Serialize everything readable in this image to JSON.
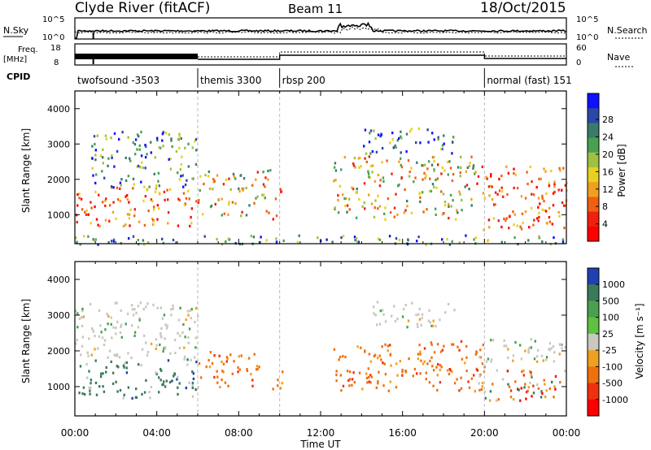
{
  "header": {
    "title": "Clyde River (fitACF)",
    "beam": "Beam 11",
    "date": "18/Oct/2015"
  },
  "summary_panel": {
    "nsky_label": "N.Sky",
    "nsky_ticks": [
      "10^5",
      "10^0"
    ],
    "nsearch_label": "N.Search",
    "nsearch_ticks": [
      "10^5",
      "10^0"
    ],
    "freq_label": "Freq.",
    "freq_unit": "[MHz]",
    "freq_ticks": [
      "18",
      "8"
    ],
    "nave_label": "Nave",
    "nave_ticks": [
      "60",
      "0"
    ],
    "cpid_label": "CPID",
    "cpid_segments": [
      {
        "name": "twofsound -3503",
        "start": 0,
        "end": 6
      },
      {
        "name": "themis 3300",
        "start": 6,
        "end": 10
      },
      {
        "name": "rbsp 200",
        "start": 10,
        "end": 20
      },
      {
        "name": "normal (fast) 151",
        "start": 20,
        "end": 24
      }
    ]
  },
  "chart_data": [
    {
      "type": "heatmap",
      "panel": "power",
      "ylabel": "Slant Range [km]",
      "ylim": [
        180,
        4500
      ],
      "y_ticks": [
        "1000",
        "2000",
        "3000",
        "4000"
      ],
      "xlim": [
        0,
        24
      ],
      "colorbar": {
        "label": "Power [dB]",
        "ticks": [
          "4",
          "8",
          "12",
          "16",
          "20",
          "24",
          "28"
        ],
        "colors": [
          "#1010ff",
          "#2a48a8",
          "#3a7a6a",
          "#4aa050",
          "#a0c040",
          "#e8d020",
          "#f0a020",
          "#f06010",
          "#f02010",
          "#ff0000"
        ]
      },
      "echo_regions": [
        {
          "t0": 0.0,
          "t1": 6.0,
          "r0": 700,
          "r1": 1800,
          "level": "strong"
        },
        {
          "t0": 0.8,
          "t1": 6.0,
          "r0": 1800,
          "r1": 3400,
          "level": "weak"
        },
        {
          "t0": 6.0,
          "t1": 9.5,
          "r0": 1000,
          "r1": 2300,
          "level": "medium"
        },
        {
          "t0": 9.6,
          "t1": 10.1,
          "r0": 900,
          "r1": 1800,
          "level": "strong"
        },
        {
          "t0": 12.6,
          "t1": 19.5,
          "r0": 900,
          "r1": 2700,
          "level": "medium"
        },
        {
          "t0": 14.0,
          "t1": 18.5,
          "r0": 2700,
          "r1": 3500,
          "level": "weak"
        },
        {
          "t0": 19.5,
          "t1": 24.0,
          "r0": 600,
          "r1": 2400,
          "level": "strong"
        },
        {
          "t0": 0.0,
          "t1": 24.0,
          "r0": 180,
          "r1": 450,
          "level": "weak"
        }
      ]
    },
    {
      "type": "heatmap",
      "panel": "velocity",
      "ylabel": "Slant Range [km]",
      "ylim": [
        180,
        4500
      ],
      "y_ticks": [
        "1000",
        "2000",
        "3000",
        "4000"
      ],
      "xlim": [
        0,
        24
      ],
      "xlabel": "Time UT",
      "x_ticks": [
        "00:00",
        "04:00",
        "08:00",
        "12:00",
        "16:00",
        "20:00",
        "00:00"
      ],
      "colorbar": {
        "label": "Velocity [m s⁻¹]",
        "ticks": [
          "1000",
          "500",
          "100",
          "25",
          "-25",
          "-100",
          "-500",
          "-1000"
        ],
        "colors": [
          "#2040b0",
          "#3a7a5a",
          "#4aa050",
          "#60c040",
          "#c8c8c0",
          "#f0a020",
          "#f07010",
          "#f03010",
          "#ff0000"
        ]
      },
      "echo_regions": [
        {
          "t0": 0.0,
          "t1": 6.0,
          "r0": 700,
          "r1": 1800,
          "level": "toward"
        },
        {
          "t0": 0.0,
          "t1": 6.0,
          "r0": 1800,
          "r1": 3400,
          "level": "near-zero"
        },
        {
          "t0": 6.0,
          "t1": 9.0,
          "r0": 1000,
          "r1": 2000,
          "level": "away"
        },
        {
          "t0": 9.6,
          "t1": 10.1,
          "r0": 900,
          "r1": 1800,
          "level": "away"
        },
        {
          "t0": 12.6,
          "t1": 20.0,
          "r0": 900,
          "r1": 2300,
          "level": "away"
        },
        {
          "t0": 14.5,
          "t1": 18.5,
          "r0": 2700,
          "r1": 3400,
          "level": "near-zero"
        },
        {
          "t0": 19.5,
          "t1": 24.0,
          "r0": 1700,
          "r1": 2400,
          "level": "near-zero"
        },
        {
          "t0": 19.5,
          "t1": 24.0,
          "r0": 600,
          "r1": 1500,
          "level": "mixed"
        }
      ]
    }
  ]
}
